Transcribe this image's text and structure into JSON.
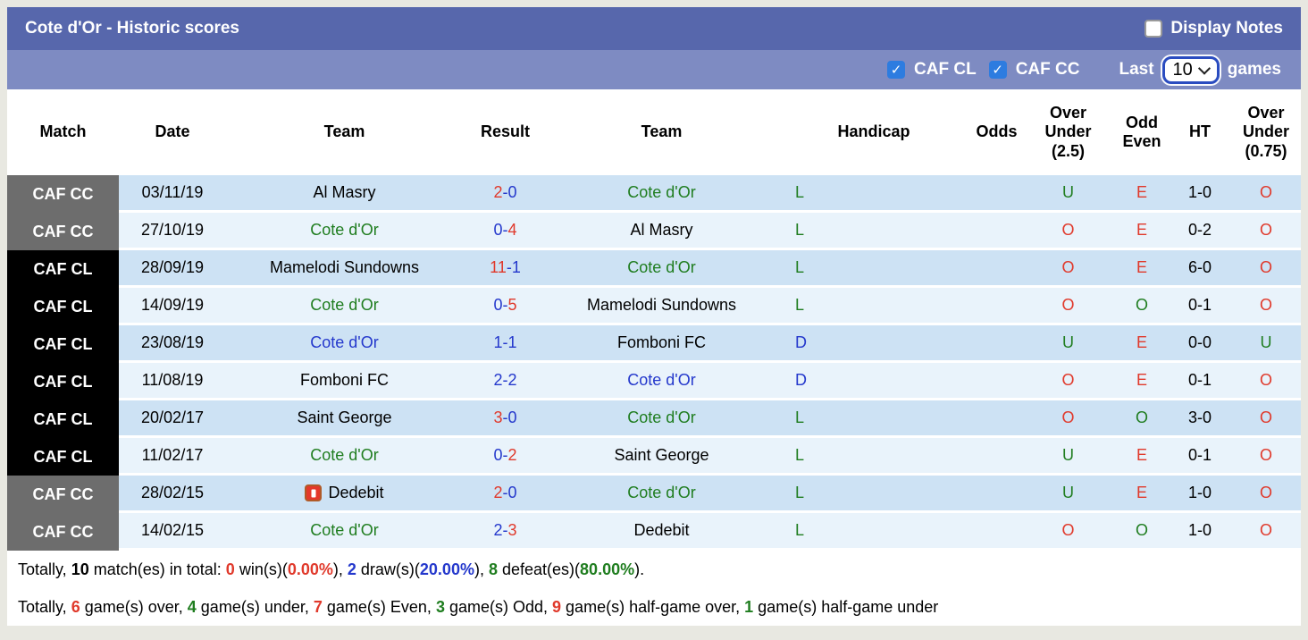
{
  "header": {
    "title": "Cote d'Or - Historic scores",
    "display_notes_label": "Display Notes",
    "display_notes_checked": false
  },
  "filterbar": {
    "filters": [
      {
        "label": "CAF CL",
        "checked": true
      },
      {
        "label": "CAF CC",
        "checked": true
      }
    ],
    "last_label": "Last",
    "games_count": "10",
    "games_label": "games"
  },
  "table": {
    "columns": [
      "Match",
      "Date",
      "Team",
      "Result",
      "Team",
      "Handicap",
      "Odds",
      "Over\nUnder\n(2.5)",
      "Odd\nEven",
      "HT",
      "Over\nUnder\n(0.75)"
    ],
    "rows": [
      {
        "competition": "CAF CC",
        "comp_style": "cc",
        "date": "03/11/19",
        "home": {
          "name": "Al Masry",
          "color": "black"
        },
        "result": [
          {
            "t": "2",
            "c": "red"
          },
          {
            "t": "-",
            "c": "blue"
          },
          {
            "t": "0",
            "c": "blue"
          }
        ],
        "away": {
          "name": "Cote d'Or",
          "color": "green"
        },
        "handicap": {
          "t": "L",
          "c": "green"
        },
        "odds": "",
        "over_under_25": {
          "t": "U",
          "c": "green"
        },
        "odd_even": {
          "t": "E",
          "c": "red"
        },
        "ht": "1-0",
        "over_under_075": {
          "t": "O",
          "c": "red"
        }
      },
      {
        "competition": "CAF CC",
        "comp_style": "cc",
        "date": "27/10/19",
        "home": {
          "name": "Cote d'Or",
          "color": "green"
        },
        "result": [
          {
            "t": "0",
            "c": "blue"
          },
          {
            "t": "-",
            "c": "blue"
          },
          {
            "t": "4",
            "c": "red"
          }
        ],
        "away": {
          "name": "Al Masry",
          "color": "black"
        },
        "handicap": {
          "t": "L",
          "c": "green"
        },
        "odds": "",
        "over_under_25": {
          "t": "O",
          "c": "red"
        },
        "odd_even": {
          "t": "E",
          "c": "red"
        },
        "ht": "0-2",
        "over_under_075": {
          "t": "O",
          "c": "red"
        }
      },
      {
        "competition": "CAF CL",
        "comp_style": "cl",
        "date": "28/09/19",
        "home": {
          "name": "Mamelodi Sundowns",
          "color": "black"
        },
        "result": [
          {
            "t": "11",
            "c": "red"
          },
          {
            "t": "-",
            "c": "blue"
          },
          {
            "t": "1",
            "c": "blue"
          }
        ],
        "away": {
          "name": "Cote d'Or",
          "color": "green"
        },
        "handicap": {
          "t": "L",
          "c": "green"
        },
        "odds": "",
        "over_under_25": {
          "t": "O",
          "c": "red"
        },
        "odd_even": {
          "t": "E",
          "c": "red"
        },
        "ht": "6-0",
        "over_under_075": {
          "t": "O",
          "c": "red"
        }
      },
      {
        "competition": "CAF CL",
        "comp_style": "cl",
        "date": "14/09/19",
        "home": {
          "name": "Cote d'Or",
          "color": "green"
        },
        "result": [
          {
            "t": "0",
            "c": "blue"
          },
          {
            "t": "-",
            "c": "blue"
          },
          {
            "t": "5",
            "c": "red"
          }
        ],
        "away": {
          "name": "Mamelodi Sundowns",
          "color": "black"
        },
        "handicap": {
          "t": "L",
          "c": "green"
        },
        "odds": "",
        "over_under_25": {
          "t": "O",
          "c": "red"
        },
        "odd_even": {
          "t": "O",
          "c": "green"
        },
        "ht": "0-1",
        "over_under_075": {
          "t": "O",
          "c": "red"
        }
      },
      {
        "competition": "CAF CL",
        "comp_style": "cl",
        "date": "23/08/19",
        "home": {
          "name": "Cote d'Or",
          "color": "blue"
        },
        "result": [
          {
            "t": "1",
            "c": "blue"
          },
          {
            "t": "-",
            "c": "blue"
          },
          {
            "t": "1",
            "c": "blue"
          }
        ],
        "away": {
          "name": "Fomboni FC",
          "color": "black"
        },
        "handicap": {
          "t": "D",
          "c": "blue"
        },
        "odds": "",
        "over_under_25": {
          "t": "U",
          "c": "green"
        },
        "odd_even": {
          "t": "E",
          "c": "red"
        },
        "ht": "0-0",
        "over_under_075": {
          "t": "U",
          "c": "green"
        }
      },
      {
        "competition": "CAF CL",
        "comp_style": "cl",
        "date": "11/08/19",
        "home": {
          "name": "Fomboni FC",
          "color": "black"
        },
        "result": [
          {
            "t": "2",
            "c": "blue"
          },
          {
            "t": "-",
            "c": "blue"
          },
          {
            "t": "2",
            "c": "blue"
          }
        ],
        "away": {
          "name": "Cote d'Or",
          "color": "blue"
        },
        "handicap": {
          "t": "D",
          "c": "blue"
        },
        "odds": "",
        "over_under_25": {
          "t": "O",
          "c": "red"
        },
        "odd_even": {
          "t": "E",
          "c": "red"
        },
        "ht": "0-1",
        "over_under_075": {
          "t": "O",
          "c": "red"
        }
      },
      {
        "competition": "CAF CL",
        "comp_style": "cl",
        "date": "20/02/17",
        "home": {
          "name": "Saint George",
          "color": "black"
        },
        "result": [
          {
            "t": "3",
            "c": "red"
          },
          {
            "t": "-",
            "c": "blue"
          },
          {
            "t": "0",
            "c": "blue"
          }
        ],
        "away": {
          "name": "Cote d'Or",
          "color": "green"
        },
        "handicap": {
          "t": "L",
          "c": "green"
        },
        "odds": "",
        "over_under_25": {
          "t": "O",
          "c": "red"
        },
        "odd_even": {
          "t": "O",
          "c": "green"
        },
        "ht": "3-0",
        "over_under_075": {
          "t": "O",
          "c": "red"
        }
      },
      {
        "competition": "CAF CL",
        "comp_style": "cl",
        "date": "11/02/17",
        "home": {
          "name": "Cote d'Or",
          "color": "green"
        },
        "result": [
          {
            "t": "0",
            "c": "blue"
          },
          {
            "t": "-",
            "c": "blue"
          },
          {
            "t": "2",
            "c": "red"
          }
        ],
        "away": {
          "name": "Saint George",
          "color": "black"
        },
        "handicap": {
          "t": "L",
          "c": "green"
        },
        "odds": "",
        "over_under_25": {
          "t": "U",
          "c": "green"
        },
        "odd_even": {
          "t": "E",
          "c": "red"
        },
        "ht": "0-1",
        "over_under_075": {
          "t": "O",
          "c": "red"
        }
      },
      {
        "competition": "CAF CC",
        "comp_style": "cc",
        "date": "28/02/15",
        "home": {
          "name": "Dedebit",
          "color": "black",
          "icon": "dedebit-logo"
        },
        "result": [
          {
            "t": "2",
            "c": "red"
          },
          {
            "t": "-",
            "c": "blue"
          },
          {
            "t": "0",
            "c": "blue"
          }
        ],
        "away": {
          "name": "Cote d'Or",
          "color": "green"
        },
        "handicap": {
          "t": "L",
          "c": "green"
        },
        "odds": "",
        "over_under_25": {
          "t": "U",
          "c": "green"
        },
        "odd_even": {
          "t": "E",
          "c": "red"
        },
        "ht": "1-0",
        "over_under_075": {
          "t": "O",
          "c": "red"
        }
      },
      {
        "competition": "CAF CC",
        "comp_style": "cc",
        "date": "14/02/15",
        "home": {
          "name": "Cote d'Or",
          "color": "green"
        },
        "result": [
          {
            "t": "2",
            "c": "blue"
          },
          {
            "t": "-",
            "c": "blue"
          },
          {
            "t": "3",
            "c": "red"
          }
        ],
        "away": {
          "name": "Dedebit",
          "color": "black"
        },
        "handicap": {
          "t": "L",
          "c": "green"
        },
        "odds": "",
        "over_under_25": {
          "t": "O",
          "c": "red"
        },
        "odd_even": {
          "t": "O",
          "c": "green"
        },
        "ht": "1-0",
        "over_under_075": {
          "t": "O",
          "c": "red"
        }
      }
    ]
  },
  "summary": {
    "line1": [
      {
        "t": "Totally, "
      },
      {
        "t": "10",
        "b": 1
      },
      {
        "t": " match(es) in total: "
      },
      {
        "t": "0",
        "c": "red",
        "b": 1
      },
      {
        "t": " win(s)("
      },
      {
        "t": "0.00%",
        "c": "red",
        "b": 1
      },
      {
        "t": "), "
      },
      {
        "t": "2",
        "c": "blue",
        "b": 1
      },
      {
        "t": " draw(s)("
      },
      {
        "t": "20.00%",
        "c": "blue",
        "b": 1
      },
      {
        "t": "), "
      },
      {
        "t": "8",
        "c": "green",
        "b": 1
      },
      {
        "t": " defeat(es)("
      },
      {
        "t": "80.00%",
        "c": "green",
        "b": 1
      },
      {
        "t": ")."
      }
    ],
    "line2": [
      {
        "t": "Totally, "
      },
      {
        "t": "6",
        "c": "red",
        "b": 1
      },
      {
        "t": " game(s) over, "
      },
      {
        "t": "4",
        "c": "green",
        "b": 1
      },
      {
        "t": " game(s) under, "
      },
      {
        "t": "7",
        "c": "red",
        "b": 1
      },
      {
        "t": " game(s) Even, "
      },
      {
        "t": "3",
        "c": "green",
        "b": 1
      },
      {
        "t": " game(s) Odd, "
      },
      {
        "t": "9",
        "c": "red",
        "b": 1
      },
      {
        "t": " game(s) half-game over, "
      },
      {
        "t": "1",
        "c": "green",
        "b": 1
      },
      {
        "t": " game(s) half-game under"
      }
    ]
  },
  "colors": {
    "header_bar": "#5767ac",
    "filter_bar": "#7e8bc2",
    "row_even": "#cde2f4",
    "row_odd": "#e9f3fb",
    "badge_caf_cc": "#6d6d6d",
    "badge_caf_cl": "#000000",
    "red": "#e0392b",
    "blue": "#2438cc",
    "green": "#1f7d1f",
    "checkbox_blue": "#2d7ce0"
  }
}
